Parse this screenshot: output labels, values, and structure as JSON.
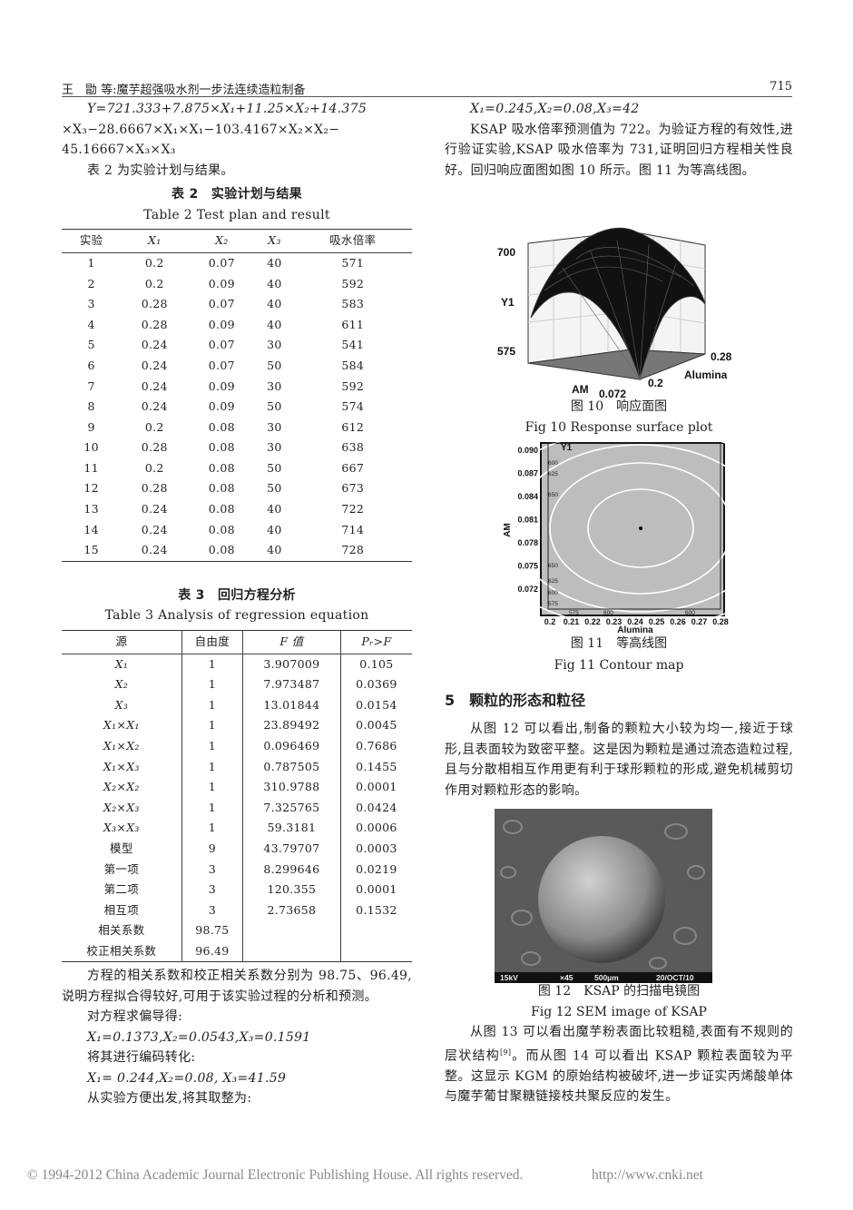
{
  "header": {
    "running_title": "王　勖 等:魔芋超强吸水剂一步法连续造粒制备",
    "page_number": "715"
  },
  "left": {
    "equation_lines": [
      "Y=721.333+7.875×X₁+11.25×X₂+14.375",
      "×X₃−28.6667×X₁×X₁−103.4167×X₂×X₂−",
      "45.16667×X₃×X₃"
    ],
    "table2_intro": "表 2 为实验计划与结果。",
    "table2": {
      "title_cn": "表 2　实验计划与结果",
      "title_en": "Table 2 Test plan and result",
      "columns": [
        "实验",
        "X₁",
        "X₂",
        "X₃",
        "吸水倍率"
      ],
      "rows": [
        [
          "1",
          "0.2",
          "0.07",
          "40",
          "571"
        ],
        [
          "2",
          "0.2",
          "0.09",
          "40",
          "592"
        ],
        [
          "3",
          "0.28",
          "0.07",
          "40",
          "583"
        ],
        [
          "4",
          "0.28",
          "0.09",
          "40",
          "611"
        ],
        [
          "5",
          "0.24",
          "0.07",
          "30",
          "541"
        ],
        [
          "6",
          "0.24",
          "0.07",
          "50",
          "584"
        ],
        [
          "7",
          "0.24",
          "0.09",
          "30",
          "592"
        ],
        [
          "8",
          "0.24",
          "0.09",
          "50",
          "574"
        ],
        [
          "9",
          "0.2",
          "0.08",
          "30",
          "612"
        ],
        [
          "10",
          "0.28",
          "0.08",
          "30",
          "638"
        ],
        [
          "11",
          "0.2",
          "0.08",
          "50",
          "667"
        ],
        [
          "12",
          "0.28",
          "0.08",
          "50",
          "673"
        ],
        [
          "13",
          "0.24",
          "0.08",
          "40",
          "722"
        ],
        [
          "14",
          "0.24",
          "0.08",
          "40",
          "714"
        ],
        [
          "15",
          "0.24",
          "0.08",
          "40",
          "728"
        ]
      ]
    },
    "table3": {
      "title_cn": "表 3　回归方程分析",
      "title_en": "Table 3 Analysis of regression equation",
      "columns": [
        "源",
        "自由度",
        "F 值",
        "Pᵣ>F"
      ],
      "rows": [
        [
          "X₁",
          "1",
          "3.907009",
          "0.105"
        ],
        [
          "X₂",
          "1",
          "7.973487",
          "0.0369"
        ],
        [
          "X₃",
          "1",
          "13.01844",
          "0.0154"
        ],
        [
          "X₁×X₁",
          "1",
          "23.89492",
          "0.0045"
        ],
        [
          "X₁×X₂",
          "1",
          "0.096469",
          "0.7686"
        ],
        [
          "X₁×X₃",
          "1",
          "0.787505",
          "0.1455"
        ],
        [
          "X₂×X₂",
          "1",
          "310.9788",
          "0.0001"
        ],
        [
          "X₂×X₃",
          "1",
          "7.325765",
          "0.0424"
        ],
        [
          "X₃×X₃",
          "1",
          "59.3181",
          "0.0006"
        ],
        [
          "模型",
          "9",
          "43.79707",
          "0.0003"
        ],
        [
          "第一项",
          "3",
          "8.299646",
          "0.0219"
        ],
        [
          "第二项",
          "3",
          "120.355",
          "0.0001"
        ],
        [
          "相互项",
          "3",
          "2.73658",
          "0.1532"
        ],
        [
          "相关系数",
          "98.75",
          "",
          ""
        ],
        [
          "校正相关系数",
          "96.49",
          "",
          ""
        ]
      ]
    },
    "para1": "方程的相关系数和校正相关系数分别为 98.75、96.49,说明方程拟合得较好,可用于该实验过程的分析和预测。",
    "line_deriv": "对方程求偏导得:",
    "deriv_values": "X₁=0.1373,X₂=0.0543,X₃=0.1591",
    "line_code": "将其进行编码转化:",
    "coded_values": "X₁= 0.244,X₂=0.08, X₃=41.59",
    "line_round": "从实验方便出发,将其取整为:"
  },
  "right": {
    "rounded_values": "X₁=0.245,X₂=0.08,X₃=42",
    "para1": "KSAP 吸水倍率预测值为 722。为验证方程的有效性,进行验证实验,KSAP 吸水倍率为 731,证明回归方程相关性良好。回归响应面图如图 10 所示。图 11 为等高线图。",
    "fig10": {
      "caption_cn": "图 10　响应面图",
      "caption_en": "Fig 10 Response surface plot",
      "z_ticks": [
        "700",
        "575"
      ],
      "z_label": "Y1",
      "x_label": "AM",
      "x_tick": "0.072",
      "y_label": "Alumina",
      "y_ticks": [
        "0.28",
        "0.2"
      ]
    },
    "fig11": {
      "caption_cn": "图 11　等高线图",
      "caption_en": "Fig 11 Contour map",
      "legend": "Y1",
      "y_label": "AM",
      "x_label": "Alumina",
      "y_ticks": [
        "0.090",
        "0.087",
        "0.084",
        "0.081",
        "0.078",
        "0.075",
        "0.072"
      ],
      "x_ticks": [
        "0.2",
        "0.21",
        "0.22",
        "0.23",
        "0.24",
        "0.25",
        "0.26",
        "0.27",
        "0.28"
      ],
      "contour_labels_left_top": [
        "600",
        "625",
        "650"
      ],
      "contour_labels_left_bottom": [
        "650",
        "625",
        "600",
        "575"
      ],
      "contour_labels_bottom": [
        "575",
        "600",
        "600"
      ]
    },
    "section_heading": "5　颗粒的形态和粒径",
    "para2": "从图 12 可以看出,制备的颗粒大小较为均一,接近于球形,且表面较为致密平整。这是因为颗粒是通过流态造粒过程,且与分散相相互作用更有利于球形颗粒的形成,避免机械剪切作用对颗粒形态的影响。",
    "fig12": {
      "caption_cn": "图 12　KSAP 的扫描电镜图",
      "caption_en": "Fig 12 SEM image of KSAP",
      "sem_info": [
        "15kV",
        "×45",
        "500µm",
        "20/OCT/10"
      ]
    },
    "para3_a": "从图 13 可以看出魔芋粉表面比较粗糙,表面有不规则的层状结构",
    "para3_ref": "[9]",
    "para3_b": "。而从图 14 可以看出 KSAP 颗粒表面较为平整。这显示 KGM 的原始结构被破坏,进一步证实丙烯酸单体与魔芋葡甘聚糖链接枝共聚反应的发生。"
  },
  "footer": {
    "copyright": "© 1994-2012 China Academic Journal Electronic Publishing House. All rights reserved.",
    "url": "http://www.cnki.net"
  }
}
